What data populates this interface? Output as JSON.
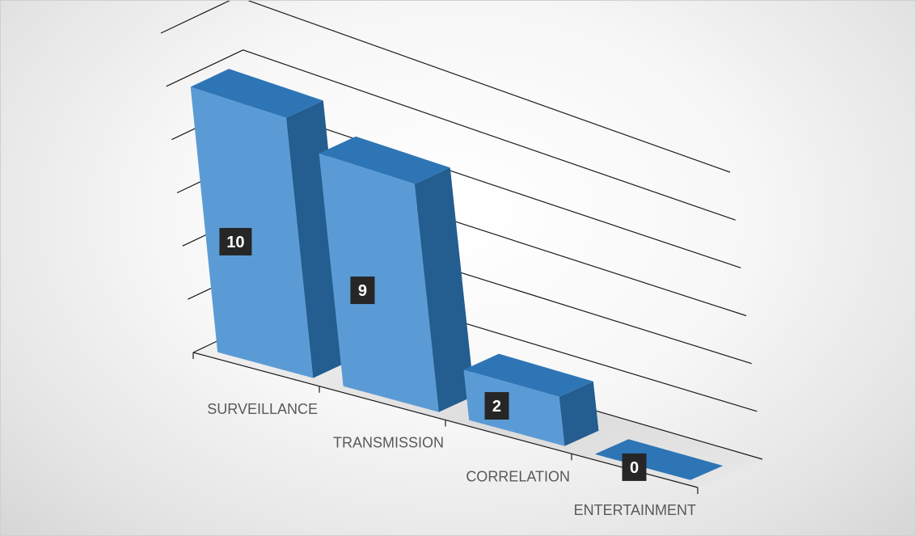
{
  "chart_data": {
    "type": "bar",
    "style": "3d-column",
    "categories": [
      "SURVEILLANCE",
      "TRANSMISSION",
      "CORRELATION",
      "ENTERTAINMENT"
    ],
    "values": [
      10,
      9,
      2,
      0
    ],
    "data_labels": [
      "10",
      "9",
      "2",
      "0"
    ],
    "title": "",
    "xlabel": "",
    "ylabel": "",
    "ylim": [
      0,
      12
    ],
    "grid": true,
    "legend": "none",
    "colors": {
      "bar_front": "#5b9bd5",
      "bar_top": "#2e75b6",
      "bar_side": "#245d8f",
      "label_bg": "#262626",
      "label_text": "#ffffff",
      "gridline": "#1a1a1a",
      "floor": "#e6e6e6"
    }
  }
}
